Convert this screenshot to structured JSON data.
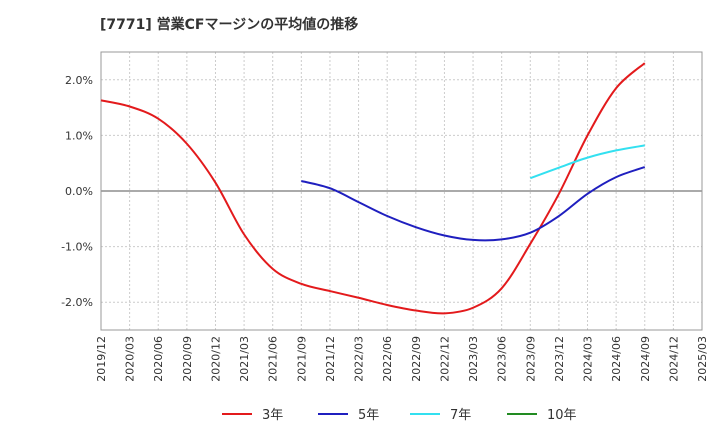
{
  "chart_data": {
    "type": "line",
    "title": "[7771]  営業CFマージンの平均値の推移",
    "xlabel": "",
    "ylabel": "",
    "ylim": [
      -2.5,
      2.5
    ],
    "yticks": [
      {
        "value": 2.0,
        "label": "2.0%"
      },
      {
        "value": 1.0,
        "label": "1.0%"
      },
      {
        "value": 0.0,
        "label": "0.0%"
      },
      {
        "value": -1.0,
        "label": "-1.0%"
      },
      {
        "value": -2.0,
        "label": "-2.0%"
      }
    ],
    "x_tick_labels": [
      "2019/12",
      "2020/03",
      "2020/06",
      "2020/09",
      "2020/12",
      "2021/03",
      "2021/06",
      "2021/09",
      "2021/12",
      "2022/03",
      "2022/06",
      "2022/09",
      "2022/12",
      "2023/03",
      "2023/06",
      "2023/09",
      "2023/12",
      "2024/03",
      "2024/06",
      "2024/09",
      "2024/12",
      "2025/03"
    ],
    "grid": true,
    "legend_position": "bottom",
    "series": [
      {
        "name": "3年",
        "color": "#e31a1c",
        "x": [
          "2019/12",
          "2020/03",
          "2020/06",
          "2020/09",
          "2020/12",
          "2021/03",
          "2021/06",
          "2021/09",
          "2021/12",
          "2022/03",
          "2022/06",
          "2022/09",
          "2022/12",
          "2023/03",
          "2023/06",
          "2023/09",
          "2023/12",
          "2024/03",
          "2024/06",
          "2024/09"
        ],
        "values": [
          1.63,
          1.52,
          1.3,
          0.85,
          0.15,
          -0.78,
          -1.4,
          -1.67,
          -1.8,
          -1.92,
          -2.05,
          -2.15,
          -2.2,
          -2.1,
          -1.75,
          -0.95,
          -0.05,
          1.0,
          1.85,
          2.3
        ]
      },
      {
        "name": "5年",
        "color": "#1f1fbf",
        "x": [
          "2021/09",
          "2021/12",
          "2022/03",
          "2022/06",
          "2022/09",
          "2022/12",
          "2023/03",
          "2023/06",
          "2023/09",
          "2023/12",
          "2024/03",
          "2024/06",
          "2024/09"
        ],
        "values": [
          0.18,
          0.05,
          -0.2,
          -0.45,
          -0.65,
          -0.8,
          -0.88,
          -0.87,
          -0.75,
          -0.45,
          -0.05,
          0.25,
          0.43
        ]
      },
      {
        "name": "7年",
        "color": "#33e0f0",
        "x": [
          "2023/09",
          "2023/12",
          "2024/03",
          "2024/06",
          "2024/09"
        ],
        "values": [
          0.23,
          0.42,
          0.6,
          0.73,
          0.82
        ]
      },
      {
        "name": "10年",
        "color": "#228b22",
        "x": [],
        "values": []
      }
    ]
  }
}
